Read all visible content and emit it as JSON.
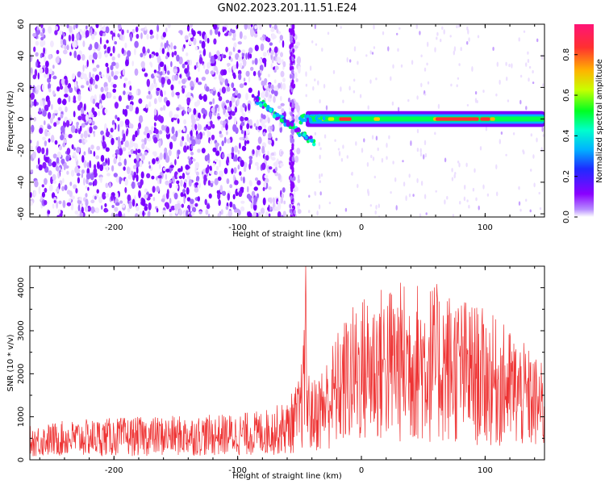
{
  "title": "GN02.2023.201.11.51.E24",
  "colors": {
    "snr_trace": "#ee3333",
    "cmap": [
      "#8a00ff",
      "#3b2bff",
      "#00b3ff",
      "#00ff4c",
      "#d6ff00",
      "#ffb300",
      "#ff3333",
      "#ff1493"
    ]
  },
  "chart_data": [
    {
      "type": "heatmap",
      "title": "GN02.2023.201.11.51.E24",
      "xlabel": "Height of straight line (km)",
      "ylabel": "Frequency (Hz)",
      "xlim": [
        -268,
        148
      ],
      "ylim": [
        -62,
        60
      ],
      "xticks": [
        -200,
        -100,
        0,
        100
      ],
      "yticks": [
        -60,
        -40,
        -20,
        0,
        20,
        40,
        60
      ],
      "colorbar": {
        "label": "Normalized spectral amplitude",
        "range": [
          0.0,
          0.95
        ],
        "ticks": [
          0.0,
          0.2,
          0.4,
          0.6,
          0.8
        ]
      },
      "features": {
        "noise_region_x": [
          -268,
          -50
        ],
        "gap_x": [
          -62,
          -58
        ],
        "diagonal_signal": {
          "x": [
            -85,
            -38
          ],
          "y": [
            12,
            -15
          ]
        },
        "band_signal": {
          "x": [
            -45,
            148
          ],
          "y_center": 0,
          "half_width_hz": 3,
          "peak_amplitude_x": [
            60,
            95
          ]
        }
      }
    },
    {
      "type": "line",
      "xlabel": "Height of straight line (km)",
      "ylabel": "SNR (10 * v/v)",
      "xlim": [
        -268,
        148
      ],
      "ylim": [
        0,
        4500
      ],
      "xticks": [
        -200,
        -100,
        0,
        100
      ],
      "yticks": [
        0,
        1000,
        2000,
        3000,
        4000
      ],
      "series": [
        {
          "x": [
            -268,
            -240,
            -200,
            -160,
            -120,
            -100,
            -80,
            -60,
            -50,
            -46,
            -45,
            -44,
            -40,
            -30,
            -20,
            -10,
            0,
            20,
            40,
            60,
            80,
            100,
            120,
            140,
            148
          ],
          "values": [
            450,
            520,
            560,
            580,
            600,
            620,
            660,
            780,
            1100,
            1800,
            4500,
            1300,
            1050,
            1300,
            1700,
            2000,
            2200,
            2350,
            2400,
            2350,
            2200,
            2000,
            1750,
            1400,
            1250
          ]
        }
      ]
    }
  ]
}
